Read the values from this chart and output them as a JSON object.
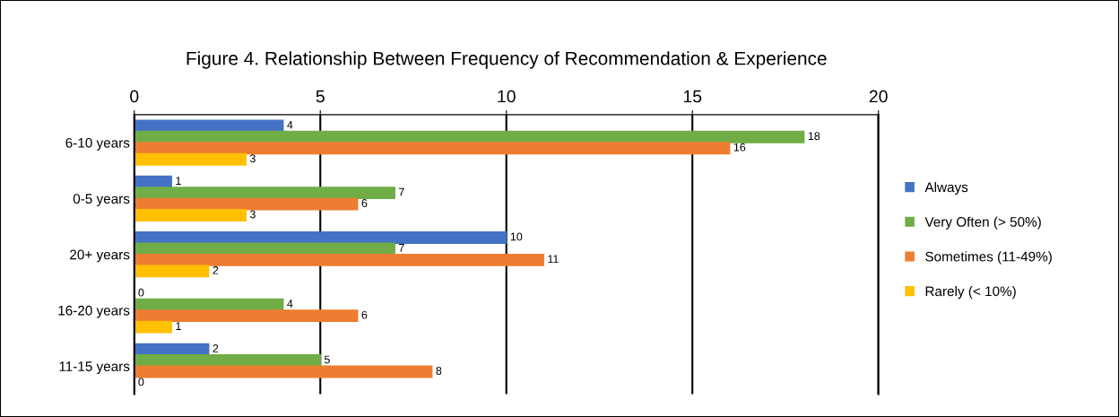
{
  "chart_data": {
    "type": "bar",
    "orientation": "horizontal",
    "title": "Figure 4. Relationship Between Frequency of Recommendation & Experience",
    "categories": [
      "6-10 years",
      "0-5 years",
      "20+ years",
      "16-20 years",
      "11-15 years"
    ],
    "series": [
      {
        "name": "Always",
        "color": "#4472c4",
        "values": [
          4,
          1,
          10,
          0,
          2
        ]
      },
      {
        "name": "Very Often (> 50%)",
        "color": "#70ad47",
        "values": [
          18,
          7,
          7,
          4,
          5
        ]
      },
      {
        "name": "Sometimes (11-49%)",
        "color": "#ed7d31",
        "values": [
          16,
          6,
          11,
          6,
          8
        ]
      },
      {
        "name": "Rarely (< 10%)",
        "color": "#ffc000",
        "values": [
          3,
          3,
          2,
          1,
          0
        ]
      }
    ],
    "xlim": [
      0,
      20
    ],
    "xticks": [
      0,
      5,
      10,
      15,
      20
    ],
    "grid": "x",
    "legend": "right",
    "data_labels": true
  }
}
